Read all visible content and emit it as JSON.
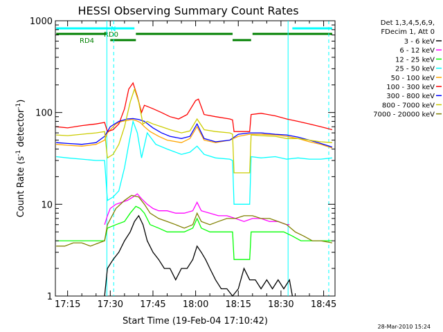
{
  "chart_data": {
    "type": "line",
    "title": "HESSI Observing Summary Count Rates",
    "xlabel": "Start Time (19-Feb-04 17:10:42)",
    "ylabel": "Count Rate (s",
    "ylabel_sup": "-1",
    "ylabel_mid": " detector",
    "ylabel_end": ")",
    "xlim": [
      1030.7,
      1129.0
    ],
    "ylim": [
      1,
      1000
    ],
    "y_scale": "log",
    "x_ticks": [
      {
        "value": 1035,
        "label": "17:15"
      },
      {
        "value": 1050,
        "label": "17:30"
      },
      {
        "value": 1065,
        "label": "17:45"
      },
      {
        "value": 1080,
        "label": "18:00"
      },
      {
        "value": 1095,
        "label": "18:15"
      },
      {
        "value": 1110,
        "label": "18:30"
      },
      {
        "value": 1125,
        "label": "18:45"
      }
    ],
    "y_ticks": [
      {
        "value": 1,
        "label": "1"
      },
      {
        "value": 10,
        "label": "10"
      },
      {
        "value": 100,
        "label": "100"
      },
      {
        "value": 1000,
        "label": "1000"
      }
    ],
    "legend_header": [
      "Det 1,3,4,5,6,9,",
      "FDecim 1, Att 0"
    ],
    "footer_timestamp": "28-Mar-2010 15:24",
    "flags": [
      {
        "label": "N",
        "color": "#00ffff",
        "segments": [
          [
            1031,
            1058.5
          ],
          [
            1114,
            1128
          ]
        ]
      },
      {
        "label": "RD0",
        "color": "#008000",
        "segments": [
          [
            1031,
            1049
          ],
          [
            1059,
            1093
          ],
          [
            1100,
            1128
          ]
        ]
      },
      {
        "label": "RD4",
        "color": "#008000",
        "segments": [
          [
            1050,
            1059
          ],
          [
            1093,
            1099.5
          ]
        ]
      }
    ],
    "vlines": [
      {
        "x": 1048.8,
        "style": "solid",
        "color": "#00ffff"
      },
      {
        "x": 1051.2,
        "style": "dashed",
        "color": "#00ffff"
      },
      {
        "x": 1112.5,
        "style": "solid",
        "color": "#00ffff"
      },
      {
        "x": 1126.8,
        "style": "dashed",
        "color": "#00ffff"
      }
    ],
    "series": [
      {
        "name": "3 - 6 keV",
        "color": "#000000",
        "x": [
          1048.0,
          1049.0,
          1051.0,
          1053.0,
          1055.0,
          1057.0,
          1058.5,
          1060.0,
          1061.5,
          1063.0,
          1065.0,
          1067.0,
          1069.0,
          1071.0,
          1073.0,
          1075.0,
          1077.0,
          1079.0,
          1080.5,
          1082.0,
          1083.5,
          1085.0,
          1087.0,
          1089.0,
          1091.0,
          1093.0,
          1095.0,
          1097.0,
          1099.0,
          1101.0,
          1103.0,
          1105.0,
          1107.0,
          1109.0,
          1111.0,
          1113.0,
          1114.0
        ],
        "y": [
          1.0,
          2.0,
          2.5,
          3.0,
          4.0,
          5.0,
          6.5,
          7.5,
          6.0,
          4.0,
          3.0,
          2.5,
          2.0,
          2.0,
          1.5,
          2.0,
          2.0,
          2.5,
          3.5,
          3.0,
          2.5,
          2.0,
          1.5,
          1.2,
          1.2,
          1.0,
          1.2,
          2.0,
          1.5,
          1.5,
          1.2,
          1.5,
          1.2,
          1.5,
          1.2,
          1.5,
          1.0
        ]
      },
      {
        "name": "6 - 12 keV",
        "color": "#ff00ff",
        "x": [
          1048.0,
          1049.0,
          1050.0,
          1052.0,
          1054.0,
          1056.0,
          1058.0,
          1059.5,
          1061.0,
          1063.0,
          1065.0,
          1067.0,
          1070.0,
          1073.0,
          1076.0,
          1079.0,
          1080.5,
          1082.0,
          1085.0,
          1088.0,
          1091.0,
          1094.0,
          1097.0,
          1100.0,
          1103.0,
          1106.0,
          1109.0,
          1112.0,
          1113.0
        ],
        "y": [
          6.0,
          7.5,
          9.0,
          10.0,
          10.5,
          11.0,
          12.0,
          13.0,
          11.5,
          10.0,
          9.0,
          8.5,
          8.5,
          8.0,
          8.0,
          8.5,
          10.5,
          8.5,
          8.0,
          7.5,
          7.5,
          7.0,
          6.5,
          7.0,
          7.0,
          6.5,
          6.5,
          6.0,
          6.0
        ]
      },
      {
        "name": "12 - 25 keV",
        "color": "#00ff00",
        "x": [
          1031.0,
          1034.0,
          1037.0,
          1040.0,
          1043.0,
          1046.0,
          1048.0,
          1049.0,
          1052.0,
          1055.0,
          1057.0,
          1059.0,
          1060.5,
          1062.0,
          1064.0,
          1067.0,
          1070.0,
          1073.0,
          1076.0,
          1079.0,
          1080.5,
          1082.0,
          1085.0,
          1088.0,
          1091.0,
          1093.0,
          1093.5,
          1096.0,
          1099.0,
          1099.5,
          1102.0,
          1105.0,
          1108.0,
          1111.0,
          1114.0,
          1117.0,
          1120.0,
          1123.0,
          1126.0,
          1128.0
        ],
        "y": [
          4.0,
          4.0,
          4.0,
          4.0,
          4.0,
          4.0,
          4.0,
          5.5,
          6.0,
          6.5,
          8.0,
          9.5,
          9.0,
          8.0,
          6.0,
          5.5,
          5.0,
          5.0,
          5.0,
          5.5,
          7.0,
          5.5,
          5.0,
          5.0,
          5.0,
          5.0,
          2.5,
          2.5,
          2.5,
          5.0,
          5.0,
          5.0,
          5.0,
          5.0,
          4.5,
          4.0,
          4.0,
          4.0,
          4.0,
          4.0
        ]
      },
      {
        "name": "25 - 50 keV",
        "color": "#00ffff",
        "x": [
          1031.0,
          1035.0,
          1040.0,
          1045.0,
          1048.0,
          1049.0,
          1051.0,
          1053.0,
          1055.0,
          1056.5,
          1058.0,
          1059.5,
          1061.0,
          1063.0,
          1066.0,
          1070.0,
          1075.0,
          1078.0,
          1080.5,
          1083.0,
          1087.0,
          1092.0,
          1093.0,
          1093.5,
          1096.0,
          1099.0,
          1099.5,
          1103.0,
          1108.0,
          1112.0,
          1116.0,
          1120.0,
          1124.0,
          1128.0
        ],
        "y": [
          33.0,
          32.0,
          31.0,
          30.0,
          30.0,
          11.0,
          12.0,
          14.0,
          25.0,
          45.0,
          80.0,
          60.0,
          32.0,
          60.0,
          45.0,
          40.0,
          35.0,
          37.0,
          43.0,
          35.0,
          32.0,
          31.0,
          30.0,
          10.0,
          10.0,
          10.0,
          33.0,
          32.0,
          33.0,
          31.0,
          32.0,
          31.0,
          31.0,
          32.0
        ]
      },
      {
        "name": "50 - 100 keV",
        "color": "#ffa500",
        "x": [
          1031.0,
          1035.0,
          1040.0,
          1045.0,
          1048.0,
          1049.0,
          1052.0,
          1054.0,
          1056.0,
          1057.5,
          1059.0,
          1060.5,
          1062.0,
          1064.0,
          1067.0,
          1070.0,
          1075.0,
          1078.0,
          1080.5,
          1083.0,
          1087.0,
          1092.0,
          1095.0,
          1099.0,
          1103.0,
          1108.0,
          1112.0,
          1116.0,
          1120.0,
          1124.0,
          1128.0
        ],
        "y": [
          45.0,
          44.0,
          43.0,
          45.0,
          50.0,
          60.0,
          75.0,
          80.0,
          82.0,
          84.0,
          82.0,
          78.0,
          70.0,
          62.0,
          55.0,
          50.0,
          47.0,
          52.0,
          70.0,
          50.0,
          47.0,
          50.0,
          55.0,
          58.0,
          58.0,
          57.0,
          55.0,
          52.0,
          48.0,
          45.0,
          41.0
        ]
      },
      {
        "name": "100 - 300 keV",
        "color": "#ff0000",
        "x": [
          1031.0,
          1035.0,
          1040.0,
          1045.0,
          1048.0,
          1049.0,
          1051.0,
          1053.0,
          1055.0,
          1056.5,
          1058.0,
          1059.5,
          1061.0,
          1062.0,
          1065.0,
          1068.0,
          1071.0,
          1074.0,
          1077.0,
          1080.0,
          1081.0,
          1083.0,
          1087.0,
          1092.0,
          1093.0,
          1093.5,
          1096.0,
          1099.0,
          1099.5,
          1103.0,
          1108.0,
          1112.0,
          1116.0,
          1120.0,
          1124.0,
          1128.0
        ],
        "y": [
          70.0,
          68.0,
          72.0,
          75.0,
          78.0,
          62.0,
          65.0,
          75.0,
          110.0,
          180.0,
          210.0,
          150.0,
          100.0,
          120.0,
          110.0,
          100.0,
          90.0,
          85.0,
          95.0,
          135.0,
          140.0,
          95.0,
          90.0,
          85.0,
          83.0,
          62.0,
          62.0,
          62.0,
          95.0,
          98.0,
          92.0,
          85.0,
          80.0,
          75.0,
          70.0,
          65.0
        ]
      },
      {
        "name": "300 - 800 keV",
        "color": "#0000ff",
        "x": [
          1031.0,
          1035.0,
          1040.0,
          1045.0,
          1048.0,
          1050.0,
          1053.0,
          1056.0,
          1058.0,
          1060.0,
          1062.0,
          1065.0,
          1068.0,
          1071.0,
          1075.0,
          1078.0,
          1080.5,
          1083.0,
          1087.0,
          1092.0,
          1095.0,
          1099.0,
          1103.0,
          1108.0,
          1112.0,
          1116.0,
          1120.0,
          1124.0,
          1128.0
        ],
        "y": [
          47.0,
          46.0,
          45.0,
          47.0,
          55.0,
          70.0,
          80.0,
          85.0,
          86.0,
          84.0,
          80.0,
          68.0,
          60.0,
          55.0,
          52.0,
          55.0,
          75.0,
          52.0,
          48.0,
          50.0,
          58.0,
          60.0,
          60.0,
          58.0,
          57.0,
          54.0,
          50.0,
          46.0,
          42.0
        ]
      },
      {
        "name": "800 - 7000 keV",
        "color": "#cccc00",
        "x": [
          1031.0,
          1035.0,
          1040.0,
          1045.0,
          1048.0,
          1049.0,
          1051.0,
          1053.0,
          1055.0,
          1057.0,
          1058.5,
          1060.0,
          1061.5,
          1063.0,
          1065.0,
          1068.0,
          1071.0,
          1075.0,
          1078.0,
          1080.5,
          1083.0,
          1087.0,
          1092.0,
          1093.0,
          1093.5,
          1096.0,
          1099.0,
          1099.5,
          1103.0,
          1108.0,
          1112.0,
          1116.0,
          1120.0,
          1124.0,
          1128.0
        ],
        "y": [
          57.0,
          56.0,
          58.0,
          60.0,
          62.0,
          32.0,
          35.0,
          45.0,
          70.0,
          130.0,
          180.0,
          130.0,
          75.0,
          80.0,
          75.0,
          70.0,
          65.0,
          60.0,
          63.0,
          85.0,
          65.0,
          62.0,
          60.0,
          58.0,
          22.0,
          22.0,
          22.0,
          57.0,
          56.0,
          55.0,
          52.0,
          52.0,
          50.0,
          48.0,
          47.0
        ]
      },
      {
        "name": "7000 - 20000 keV",
        "color": "#808000",
        "x": [
          1031.0,
          1034.0,
          1037.0,
          1040.0,
          1043.0,
          1046.0,
          1048.0,
          1049.0,
          1052.0,
          1055.0,
          1057.5,
          1060.0,
          1062.0,
          1064.0,
          1067.0,
          1070.0,
          1073.0,
          1076.0,
          1079.0,
          1080.5,
          1082.0,
          1085.0,
          1088.0,
          1091.0,
          1094.0,
          1097.0,
          1100.0,
          1103.0,
          1106.0,
          1109.0,
          1112.0,
          1115.0,
          1118.0,
          1121.0,
          1124.0,
          1128.0
        ],
        "y": [
          3.5,
          3.5,
          3.8,
          3.8,
          3.5,
          3.8,
          4.0,
          6.0,
          9.0,
          11.0,
          12.5,
          12.0,
          10.0,
          8.0,
          7.0,
          6.5,
          6.0,
          5.5,
          6.0,
          8.0,
          6.5,
          6.0,
          6.5,
          7.0,
          7.0,
          7.5,
          7.5,
          7.0,
          7.0,
          6.5,
          6.0,
          5.0,
          4.5,
          4.0,
          4.0,
          3.8
        ]
      }
    ]
  }
}
